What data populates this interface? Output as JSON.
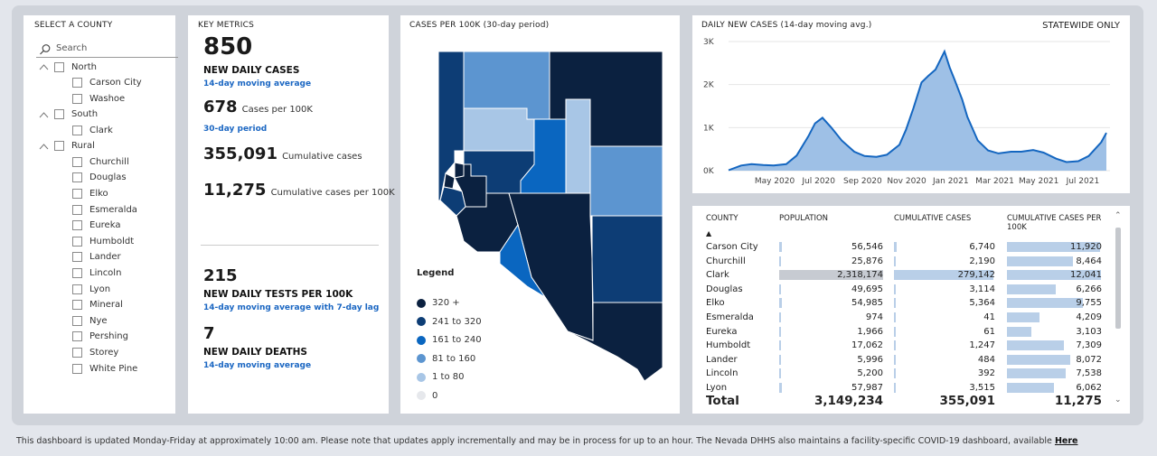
{
  "county_panel": {
    "title": "SELECT A COUNTY",
    "search_placeholder": "Search",
    "groups": [
      {
        "label": "North",
        "items": [
          "Carson City",
          "Washoe"
        ]
      },
      {
        "label": "South",
        "items": [
          "Clark"
        ]
      },
      {
        "label": "Rural",
        "items": [
          "Churchill",
          "Douglas",
          "Elko",
          "Esmeralda",
          "Eureka",
          "Humboldt",
          "Lander",
          "Lincoln",
          "Lyon",
          "Mineral",
          "Nye",
          "Pershing",
          "Storey",
          "White Pine"
        ]
      }
    ]
  },
  "metrics": {
    "title": "KEY METRICS",
    "daily_cases": "850",
    "daily_cases_label": "NEW DAILY CASES",
    "daily_cases_sub": "14-day moving average",
    "cases_per_100k": "678",
    "cases_per_100k_label": "Cases per 100K",
    "cases_per_100k_sub": "30-day period",
    "cumulative_cases": "355,091",
    "cumulative_cases_label": "Cumulative cases",
    "cumulative_per_100k": "11,275",
    "cumulative_per_100k_label": "Cumulative cases per 100K",
    "daily_tests": "215",
    "daily_tests_label": "NEW DAILY TESTS PER 100K",
    "daily_tests_sub": "14-day moving average with 7-day lag",
    "daily_deaths": "7",
    "daily_deaths_label": "NEW DAILY DEATHS",
    "daily_deaths_sub": "14-day moving average"
  },
  "map": {
    "title": "CASES PER 100K (30-day period)",
    "legend_title": "Legend",
    "legend": [
      {
        "label": "320 +",
        "color": "#0b2140"
      },
      {
        "label": "241 to 320",
        "color": "#0d3d75"
      },
      {
        "label": "161 to 240",
        "color": "#0a66c0"
      },
      {
        "label": "81 to 160",
        "color": "#5c95d0"
      },
      {
        "label": "1 to 80",
        "color": "#a8c6e6"
      },
      {
        "label": "0",
        "color": "#e6e8ec"
      }
    ]
  },
  "trend": {
    "title": "DAILY NEW CASES (14-day moving avg.)",
    "badge": "STATEWIDE ONLY"
  },
  "chart_data": {
    "type": "area",
    "title": "DAILY NEW CASES (14-day moving avg.)",
    "y_ticks": [
      "0K",
      "1K",
      "2K",
      "3K"
    ],
    "ylim": [
      0,
      3000
    ],
    "x_ticks": [
      "May 2020",
      "Jul 2020",
      "Sep 2020",
      "Nov 2020",
      "Jan 2021",
      "Mar 2021",
      "May 2021",
      "Jul 2021"
    ],
    "x": [
      "2020-03-15",
      "2020-04-01",
      "2020-04-15",
      "2020-05-01",
      "2020-05-15",
      "2020-06-01",
      "2020-06-15",
      "2020-07-01",
      "2020-07-10",
      "2020-07-20",
      "2020-08-01",
      "2020-08-15",
      "2020-09-01",
      "2020-09-15",
      "2020-10-01",
      "2020-10-15",
      "2020-11-01",
      "2020-11-10",
      "2020-11-20",
      "2020-12-01",
      "2020-12-10",
      "2020-12-20",
      "2021-01-01",
      "2021-01-08",
      "2021-01-15",
      "2021-01-25",
      "2021-02-01",
      "2021-02-15",
      "2021-03-01",
      "2021-03-15",
      "2021-04-01",
      "2021-04-15",
      "2021-05-01",
      "2021-05-15",
      "2021-06-01",
      "2021-06-15",
      "2021-07-01",
      "2021-07-15",
      "2021-08-01",
      "2021-08-08"
    ],
    "values": [
      10,
      120,
      150,
      130,
      120,
      150,
      350,
      800,
      1100,
      1230,
      1000,
      700,
      440,
      340,
      320,
      370,
      600,
      950,
      1450,
      2050,
      2200,
      2350,
      2770,
      2400,
      2100,
      1650,
      1250,
      700,
      470,
      400,
      440,
      440,
      480,
      420,
      280,
      200,
      220,
      340,
      660,
      880
    ]
  },
  "table": {
    "headers": {
      "county": "COUNTY",
      "population": "POPULATION",
      "cumulative": "CUMULATIVE CASES",
      "per100k": "CUMULATIVE CASES PER 100K"
    },
    "rows": [
      {
        "county": "Carson City",
        "population": "56,546",
        "cases": "6,740",
        "per100k": "11,920"
      },
      {
        "county": "Churchill",
        "population": "25,876",
        "cases": "2,190",
        "per100k": "8,464"
      },
      {
        "county": "Clark",
        "population": "2,318,174",
        "cases": "279,142",
        "per100k": "12,041"
      },
      {
        "county": "Douglas",
        "population": "49,695",
        "cases": "3,114",
        "per100k": "6,266"
      },
      {
        "county": "Elko",
        "population": "54,985",
        "cases": "5,364",
        "per100k": "9,755"
      },
      {
        "county": "Esmeralda",
        "population": "974",
        "cases": "41",
        "per100k": "4,209"
      },
      {
        "county": "Eureka",
        "population": "1,966",
        "cases": "61",
        "per100k": "3,103"
      },
      {
        "county": "Humboldt",
        "population": "17,062",
        "cases": "1,247",
        "per100k": "7,309"
      },
      {
        "county": "Lander",
        "population": "5,996",
        "cases": "484",
        "per100k": "8,072"
      },
      {
        "county": "Lincoln",
        "population": "5,200",
        "cases": "392",
        "per100k": "7,538"
      },
      {
        "county": "Lyon",
        "population": "57,987",
        "cases": "3,515",
        "per100k": "6,062"
      }
    ],
    "total": {
      "label": "Total",
      "population": "3,149,234",
      "cases": "355,091",
      "per100k": "11,275"
    }
  },
  "footer": {
    "text": "This dashboard is updated Monday-Friday at approximately 10:00 am. Please note that updates apply incrementally and may be in process for up to an hour.  The Nevada DHHS also maintains a facility-specific COVID-19 dashboard, available",
    "link": "Here"
  }
}
